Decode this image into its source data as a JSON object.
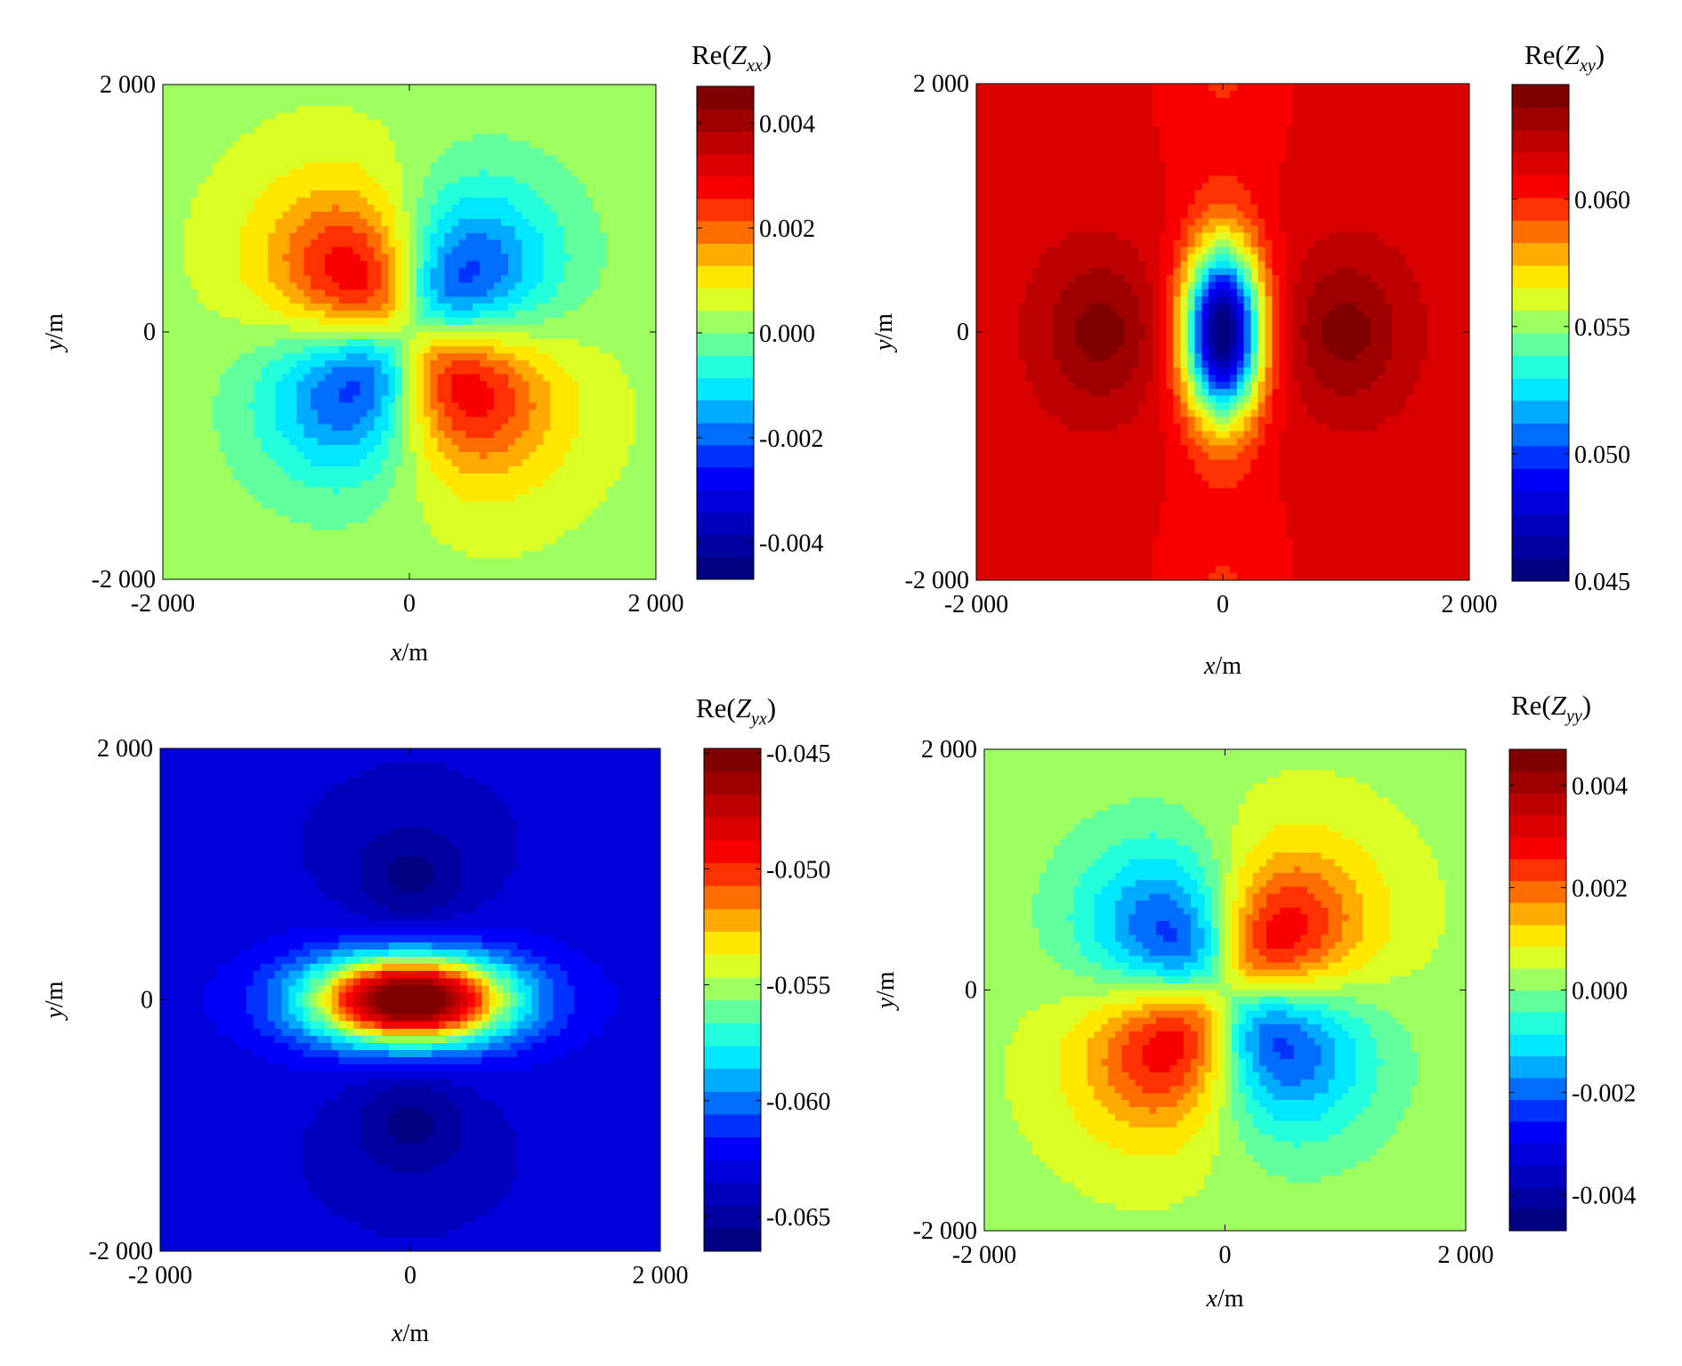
{
  "colormap": [
    "#000080",
    "#0000ff",
    "#00ffff",
    "#ffff00",
    "#ff0000",
    "#800000"
  ],
  "chart_data": [
    {
      "type": "heatmap",
      "component": "xx",
      "title": "Re(Zxx)",
      "xlabel": "x/m",
      "ylabel": "y/m",
      "xlim": [
        -2000,
        2000
      ],
      "ylim": [
        -2000,
        2000
      ],
      "xticks": [
        -2000,
        0,
        2000
      ],
      "yticks": [
        -2000,
        0,
        2000
      ],
      "xtick_labels": [
        "-2 000",
        "0",
        "2 000"
      ],
      "ytick_labels": [
        "-2 000",
        "0",
        "2 000"
      ],
      "clim": [
        -0.0047,
        0.0047
      ],
      "colorbar_ticks": [
        0.004,
        0.002,
        0.0,
        -0.002,
        -0.004
      ],
      "colorbar_labels": [
        "0.004",
        "0.002",
        "0.000",
        "-0.002",
        "-0.004"
      ],
      "pattern": "quadrupole",
      "extrema": [
        {
          "x": -550,
          "y": 450,
          "value": 0.0045
        },
        {
          "x": 550,
          "y": 450,
          "value": -0.0045
        },
        {
          "x": -550,
          "y": -450,
          "value": -0.0045
        },
        {
          "x": 550,
          "y": -450,
          "value": 0.0045
        }
      ],
      "background": 0.0003
    },
    {
      "type": "heatmap",
      "component": "xy",
      "title": "Re(Zxy)",
      "xlabel": "x/m",
      "ylabel": "y/m",
      "xlim": [
        -2000,
        2000
      ],
      "ylim": [
        -2000,
        2000
      ],
      "xticks": [
        -2000,
        0,
        2000
      ],
      "yticks": [
        -2000,
        0,
        2000
      ],
      "xtick_labels": [
        "-2 000",
        "0",
        "2 000"
      ],
      "ytick_labels": [
        "-2 000",
        "0",
        "2 000"
      ],
      "clim": [
        0.045,
        0.0645
      ],
      "colorbar_ticks": [
        0.06,
        0.055,
        0.05,
        0.045
      ],
      "colorbar_labels": [
        "0.060",
        "0.055",
        "0.050",
        "0.045"
      ],
      "extrema": [
        {
          "x": 0,
          "y": 0,
          "value": 0.045
        },
        {
          "x": -1000,
          "y": 0,
          "value": 0.064
        },
        {
          "x": 1000,
          "y": 0,
          "value": 0.064
        }
      ],
      "background": 0.0615
    },
    {
      "type": "heatmap",
      "component": "yx",
      "title": "Re(Zyx)",
      "xlabel": "x/m",
      "ylabel": "y/m",
      "xlim": [
        -2000,
        2000
      ],
      "ylim": [
        -2000,
        2000
      ],
      "xticks": [
        -2000,
        0,
        2000
      ],
      "yticks": [
        -2000,
        0,
        2000
      ],
      "xtick_labels": [
        "-2 000",
        "0",
        "2 000"
      ],
      "ytick_labels": [
        "-2 000",
        "0",
        "2 000"
      ],
      "clim": [
        -0.0665,
        -0.0448
      ],
      "colorbar_ticks": [
        -0.045,
        -0.05,
        -0.055,
        -0.06,
        -0.065
      ],
      "colorbar_labels": [
        "-0.045",
        "-0.050",
        "-0.055",
        "-0.060",
        "-0.065"
      ],
      "extrema": [
        {
          "x": 0,
          "y": 0,
          "value": -0.045
        },
        {
          "x": 0,
          "y": 950,
          "value": -0.066
        },
        {
          "x": 0,
          "y": -950,
          "value": -0.066
        }
      ],
      "background": -0.0635
    },
    {
      "type": "heatmap",
      "component": "yy",
      "title": "Re(Zyy)",
      "xlabel": "x/m",
      "ylabel": "y/m",
      "xlim": [
        -2000,
        2000
      ],
      "ylim": [
        -2000,
        2000
      ],
      "xticks": [
        -2000,
        0,
        2000
      ],
      "yticks": [
        -2000,
        0,
        2000
      ],
      "xtick_labels": [
        "-2 000",
        "0",
        "2 000"
      ],
      "ytick_labels": [
        "-2 000",
        "0",
        "2 000"
      ],
      "clim": [
        -0.0047,
        0.0047
      ],
      "colorbar_ticks": [
        0.004,
        0.002,
        0.0,
        -0.002,
        -0.004
      ],
      "colorbar_labels": [
        "0.004",
        "0.002",
        "0.000",
        "-0.002",
        "-0.004"
      ],
      "pattern": "quadrupole",
      "extrema": [
        {
          "x": -550,
          "y": 450,
          "value": -0.0045
        },
        {
          "x": 550,
          "y": 450,
          "value": 0.0045
        },
        {
          "x": -550,
          "y": -450,
          "value": 0.0045
        },
        {
          "x": 550,
          "y": -450,
          "value": -0.0045
        }
      ],
      "background": 0.0003
    }
  ]
}
